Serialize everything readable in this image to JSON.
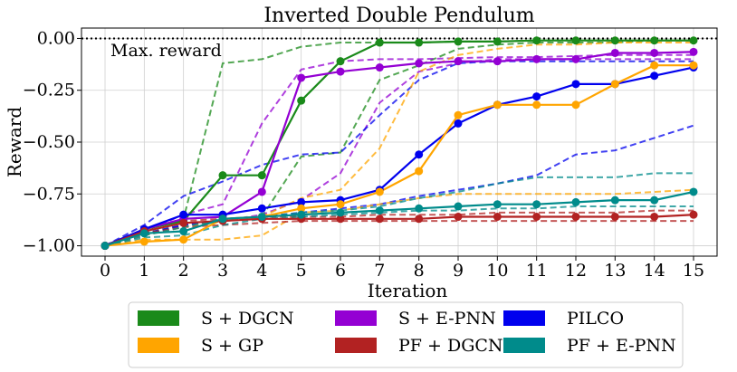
{
  "chart_data": {
    "type": "line",
    "title": "Inverted Double Pendulum",
    "xlabel": "Iteration",
    "ylabel": "Reward",
    "xlim": [
      -0.6,
      15.6
    ],
    "ylim": [
      -1.05,
      0.05
    ],
    "x_ticks": [
      0,
      1,
      2,
      3,
      4,
      5,
      6,
      7,
      8,
      9,
      10,
      11,
      12,
      13,
      14,
      15
    ],
    "y_ticks": [
      -1.0,
      -0.75,
      -0.5,
      -0.25,
      0.0
    ],
    "y_tick_labels": [
      "−1.00",
      "−0.75",
      "−0.50",
      "−0.25",
      "0.00"
    ],
    "grid": true,
    "reference_line": {
      "y": 0.0,
      "label": "Max. reward",
      "style": "dotted"
    },
    "legend_position": "bottom",
    "x": [
      0,
      1,
      2,
      3,
      4,
      5,
      6,
      7,
      8,
      9,
      10,
      11,
      12,
      13,
      14,
      15
    ],
    "series": [
      {
        "name": "S + DGCN",
        "color": "#1a8a1a",
        "values": [
          -1.0,
          -0.92,
          -0.88,
          -0.66,
          -0.66,
          -0.3,
          -0.11,
          -0.02,
          -0.02,
          -0.015,
          -0.015,
          -0.01,
          -0.01,
          -0.01,
          -0.01,
          -0.01
        ],
        "dashed": [
          [
            -1.0,
            -0.92,
            -0.87,
            -0.12,
            -0.1,
            -0.04,
            -0.02,
            -0.02,
            -0.02,
            -0.015,
            -0.015,
            -0.01,
            -0.01,
            -0.01,
            -0.01,
            -0.01
          ],
          [
            -1.0,
            -0.94,
            -0.9,
            -0.88,
            -0.86,
            -0.57,
            -0.55,
            -0.2,
            -0.13,
            -0.05,
            -0.03,
            -0.02,
            -0.02,
            -0.02,
            -0.01,
            -0.01
          ]
        ]
      },
      {
        "name": "S + E-PNN",
        "color": "#9400d3",
        "values": [
          -1.0,
          -0.92,
          -0.87,
          -0.86,
          -0.74,
          -0.19,
          -0.16,
          -0.14,
          -0.12,
          -0.11,
          -0.11,
          -0.1,
          -0.1,
          -0.07,
          -0.07,
          -0.065
        ],
        "dashed": [
          [
            -1.0,
            -0.93,
            -0.85,
            -0.8,
            -0.41,
            -0.15,
            -0.11,
            -0.1,
            -0.1,
            -0.095,
            -0.09,
            -0.09,
            -0.085,
            -0.08,
            -0.08,
            -0.08
          ],
          [
            -1.0,
            -0.95,
            -0.9,
            -0.88,
            -0.85,
            -0.78,
            -0.65,
            -0.31,
            -0.16,
            -0.12,
            -0.1,
            -0.1,
            -0.1,
            -0.1,
            -0.1,
            -0.1
          ]
        ]
      },
      {
        "name": "PILCO",
        "color": "#0000ee",
        "values": [
          -1.0,
          -0.92,
          -0.85,
          -0.85,
          -0.82,
          -0.79,
          -0.78,
          -0.73,
          -0.56,
          -0.41,
          -0.32,
          -0.28,
          -0.22,
          -0.22,
          -0.18,
          -0.14
        ],
        "dashed": [
          [
            -1.0,
            -0.9,
            -0.76,
            -0.69,
            -0.61,
            -0.56,
            -0.55,
            -0.37,
            -0.2,
            -0.12,
            -0.11,
            -0.11,
            -0.11,
            -0.11,
            -0.11,
            -0.11
          ],
          [
            -1.0,
            -0.94,
            -0.9,
            -0.88,
            -0.86,
            -0.84,
            -0.82,
            -0.8,
            -0.76,
            -0.73,
            -0.7,
            -0.66,
            -0.56,
            -0.54,
            -0.48,
            -0.42
          ]
        ]
      },
      {
        "name": "S + GP",
        "color": "#ffa500",
        "values": [
          -1.0,
          -0.98,
          -0.97,
          -0.87,
          -0.86,
          -0.82,
          -0.8,
          -0.74,
          -0.64,
          -0.37,
          -0.32,
          -0.32,
          -0.32,
          -0.22,
          -0.13,
          -0.13
        ],
        "dashed": [
          [
            -1.0,
            -0.95,
            -0.91,
            -0.88,
            -0.86,
            -0.77,
            -0.73,
            -0.53,
            -0.16,
            -0.08,
            -0.05,
            -0.03,
            -0.03,
            -0.02,
            -0.02,
            -0.02
          ],
          [
            -1.0,
            -0.97,
            -0.97,
            -0.97,
            -0.95,
            -0.84,
            -0.83,
            -0.8,
            -0.77,
            -0.75,
            -0.75,
            -0.75,
            -0.75,
            -0.75,
            -0.74,
            -0.73
          ]
        ]
      },
      {
        "name": "PF + DGCN",
        "color": "#b22222",
        "values": [
          -1.0,
          -0.93,
          -0.89,
          -0.88,
          -0.87,
          -0.87,
          -0.87,
          -0.87,
          -0.87,
          -0.86,
          -0.86,
          -0.86,
          -0.86,
          -0.86,
          -0.86,
          -0.85
        ],
        "dashed": [
          [
            -1.0,
            -0.94,
            -0.91,
            -0.9,
            -0.89,
            -0.88,
            -0.88,
            -0.88,
            -0.88,
            -0.88,
            -0.88,
            -0.88,
            -0.88,
            -0.88,
            -0.88,
            -0.88
          ],
          [
            -1.0,
            -0.92,
            -0.88,
            -0.87,
            -0.86,
            -0.86,
            -0.86,
            -0.85,
            -0.85,
            -0.85,
            -0.84,
            -0.84,
            -0.84,
            -0.84,
            -0.83,
            -0.83
          ]
        ]
      },
      {
        "name": "PF + E-PNN",
        "color": "#008b8b",
        "values": [
          -1.0,
          -0.94,
          -0.93,
          -0.87,
          -0.86,
          -0.85,
          -0.84,
          -0.83,
          -0.82,
          -0.81,
          -0.8,
          -0.8,
          -0.79,
          -0.78,
          -0.78,
          -0.74
        ],
        "dashed": [
          [
            -1.0,
            -0.95,
            -0.91,
            -0.87,
            -0.86,
            -0.84,
            -0.83,
            -0.81,
            -0.77,
            -0.74,
            -0.7,
            -0.67,
            -0.67,
            -0.67,
            -0.65,
            -0.65
          ],
          [
            -1.0,
            -0.96,
            -0.95,
            -0.9,
            -0.87,
            -0.86,
            -0.85,
            -0.84,
            -0.83,
            -0.83,
            -0.82,
            -0.82,
            -0.81,
            -0.81,
            -0.81,
            -0.81
          ]
        ]
      }
    ]
  }
}
